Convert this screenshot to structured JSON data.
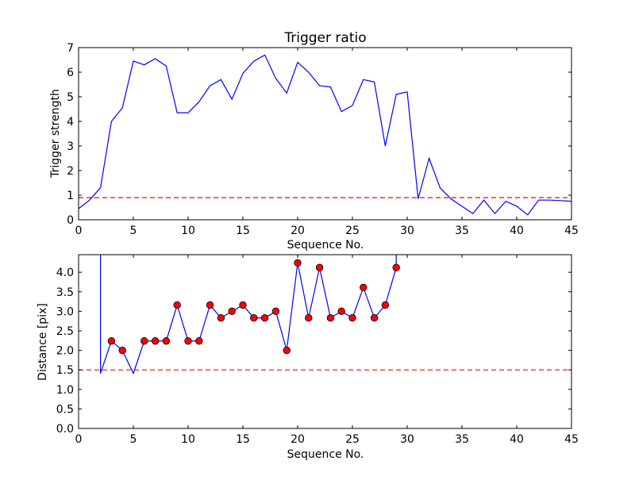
{
  "chart_data": [
    {
      "type": "line",
      "title": "Trigger ratio",
      "xlabel": "Sequence No.",
      "ylabel": "Trigger strength",
      "xlim": [
        0,
        45
      ],
      "ylim": [
        0,
        7
      ],
      "xticks": [
        "0",
        "5",
        "10",
        "15",
        "20",
        "25",
        "30",
        "35",
        "40",
        "45"
      ],
      "yticks": [
        "0",
        "1",
        "2",
        "3",
        "4",
        "5",
        "6",
        "7"
      ],
      "grid": false,
      "line_color": "#0000ff",
      "threshold": 0.9,
      "threshold_color": "#ff0000",
      "series": [
        {
          "x": [
            0,
            1,
            2,
            3,
            4,
            5,
            6,
            7,
            8,
            9,
            10,
            11,
            12,
            13,
            14,
            15,
            16,
            17,
            18,
            19,
            20,
            21,
            22,
            23,
            24,
            25,
            26,
            27,
            28,
            29,
            30,
            31,
            32,
            33,
            34,
            35,
            36,
            37,
            38,
            39,
            40,
            41,
            42,
            43,
            44,
            45
          ],
          "values": [
            0.45,
            0.8,
            1.3,
            4.0,
            4.55,
            6.45,
            6.3,
            6.55,
            6.25,
            4.35,
            4.35,
            4.8,
            5.45,
            5.7,
            4.9,
            5.95,
            6.45,
            6.7,
            5.75,
            5.15,
            6.4,
            6.0,
            5.45,
            5.4,
            4.4,
            4.65,
            5.7,
            5.6,
            3.0,
            5.1,
            5.2,
            0.85,
            2.5,
            1.3,
            0.85,
            0.55,
            0.25,
            0.8,
            0.25,
            0.75,
            0.55,
            0.2,
            0.8,
            0.8,
            0.78,
            0.75
          ]
        }
      ]
    },
    {
      "type": "line",
      "title": "",
      "xlabel": "Sequence No.",
      "ylabel": "Distance [pix]",
      "xlim": [
        0,
        45
      ],
      "ylim": [
        0,
        4.45
      ],
      "xticks": [
        "0",
        "5",
        "10",
        "15",
        "20",
        "25",
        "30",
        "35",
        "40",
        "45"
      ],
      "yticks": [
        "0.0",
        "0.5",
        "1.0",
        "1.5",
        "2.0",
        "2.5",
        "3.0",
        "3.5",
        "4.0"
      ],
      "grid": false,
      "line_color": "#0000ff",
      "marker_color": "#ff0000",
      "threshold": 1.5,
      "threshold_color": "#ff0000",
      "series": [
        {
          "x": [
            2,
            2,
            3,
            4,
            5,
            6,
            7,
            8,
            9,
            10,
            11,
            12,
            13,
            14,
            15,
            16,
            17,
            18,
            19,
            20,
            21,
            22,
            23,
            24,
            25,
            26,
            27,
            28,
            29,
            29
          ],
          "values": [
            4.45,
            1.41,
            2.24,
            2.0,
            1.41,
            2.24,
            2.24,
            2.24,
            3.16,
            2.24,
            2.24,
            3.16,
            2.83,
            3.0,
            3.16,
            2.83,
            2.83,
            3.0,
            2.0,
            4.24,
            2.83,
            4.12,
            2.83,
            3.0,
            2.83,
            3.61,
            2.83,
            3.16,
            4.12,
            4.45
          ]
        }
      ],
      "markers": {
        "x": [
          3,
          4,
          6,
          7,
          8,
          9,
          10,
          11,
          12,
          13,
          14,
          15,
          16,
          17,
          18,
          19,
          20,
          21,
          22,
          23,
          24,
          25,
          26,
          27,
          28,
          29
        ],
        "values": [
          2.24,
          2.0,
          2.24,
          2.24,
          2.24,
          3.16,
          2.24,
          2.24,
          3.16,
          2.83,
          3.0,
          3.16,
          2.83,
          2.83,
          3.0,
          2.0,
          4.24,
          2.83,
          4.12,
          2.83,
          3.0,
          2.83,
          3.61,
          2.83,
          3.16,
          4.12
        ]
      }
    }
  ]
}
